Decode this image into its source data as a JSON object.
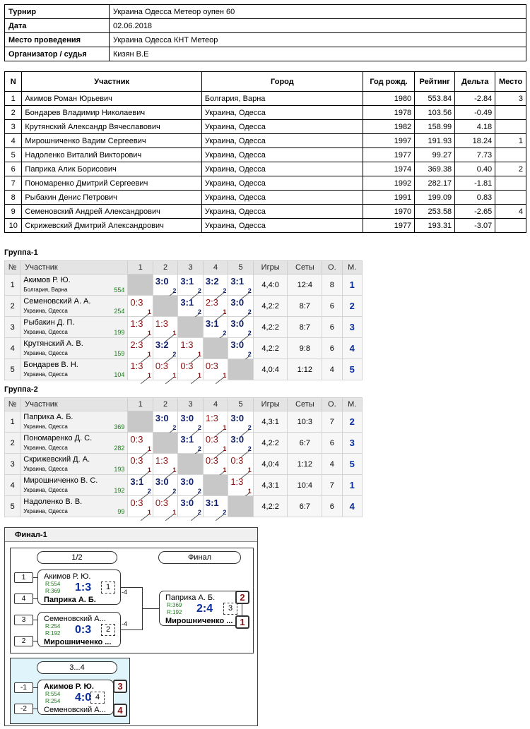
{
  "info": [
    {
      "label": "Турнир",
      "value": "Украина Одесса Метеор оупен 60"
    },
    {
      "label": "Дата",
      "value": "02.06.2018"
    },
    {
      "label": "Место проведения",
      "value": "Украина Одесса КНТ Метеор"
    },
    {
      "label": "Организатор / судья",
      "value": "Кизян В.Е"
    }
  ],
  "participants": {
    "headers": [
      "N",
      "Участник",
      "Город",
      "Год рожд.",
      "Рейтинг",
      "Дельта",
      "Место"
    ],
    "rows": [
      [
        "1",
        "Акимов Роман Юрьевич",
        "Болгария, Варна",
        "1980",
        "553.84",
        "-2.84",
        "3"
      ],
      [
        "2",
        "Бондарев Владимир Николаевич",
        "Украина, Одесса",
        "1978",
        "103.56",
        "-0.49",
        ""
      ],
      [
        "3",
        "Крутянский Александр Вячеславович",
        "Украина, Одесса",
        "1982",
        "158.99",
        "4.18",
        ""
      ],
      [
        "4",
        "Мирошниченко Вадим Сергеевич",
        "Украина, Одесса",
        "1997",
        "191.93",
        "18.24",
        "1"
      ],
      [
        "5",
        "Надоленко Виталий Викторович",
        "Украина, Одесса",
        "1977",
        "99.27",
        "7.73",
        ""
      ],
      [
        "6",
        "Паприка Алик Борисович",
        "Украина, Одесса",
        "1974",
        "369.38",
        "0.40",
        "2"
      ],
      [
        "7",
        "Пономаренко Дмитрий Сергеевич",
        "Украина, Одесса",
        "1992",
        "282.17",
        "-1.81",
        ""
      ],
      [
        "8",
        "Рыбакин Денис Петрович",
        "Украина, Одесса",
        "1991",
        "199.09",
        "0.83",
        ""
      ],
      [
        "9",
        "Семеновский Андрей Александрович",
        "Украина, Одесса",
        "1970",
        "253.58",
        "-2.65",
        "4"
      ],
      [
        "10",
        "Скрижевский Дмитрий Александрович",
        "Украина, Одесса",
        "1977",
        "193.31",
        "-3.07",
        ""
      ]
    ]
  },
  "group_headers": [
    "№",
    "Участник",
    "1",
    "2",
    "3",
    "4",
    "5",
    "Игры",
    "Сеты",
    "О.",
    "М."
  ],
  "groups": [
    {
      "title": "Группа-1",
      "rows": [
        {
          "n": "1",
          "name": "Акимов Р. Ю.",
          "city": "Болгария, Варна",
          "rating": "554",
          "cells": [
            null,
            [
              "3:0",
              "2",
              "win"
            ],
            [
              "3:1",
              "2",
              "win"
            ],
            [
              "3:2",
              "2",
              "win"
            ],
            [
              "3:1",
              "2",
              "win"
            ]
          ],
          "games": "4,4:0",
          "sets": "12:4",
          "points": "8",
          "place": "1"
        },
        {
          "n": "2",
          "name": "Семеновский А. А.",
          "city": "Украина, Одесса",
          "rating": "254",
          "cells": [
            [
              "0:3",
              "1",
              "lose"
            ],
            null,
            [
              "3:1",
              "2",
              "win"
            ],
            [
              "2:3",
              "1",
              "lose"
            ],
            [
              "3:0",
              "2",
              "win"
            ]
          ],
          "games": "4,2:2",
          "sets": "8:7",
          "points": "6",
          "place": "2"
        },
        {
          "n": "3",
          "name": "Рыбакин Д. П.",
          "city": "Украина, Одесса",
          "rating": "199",
          "cells": [
            [
              "1:3",
              "1",
              "lose"
            ],
            [
              "1:3",
              "1",
              "lose"
            ],
            null,
            [
              "3:1",
              "2",
              "win"
            ],
            [
              "3:0",
              "2",
              "win"
            ]
          ],
          "games": "4,2:2",
          "sets": "8:7",
          "points": "6",
          "place": "3"
        },
        {
          "n": "4",
          "name": "Крутянский А. В.",
          "city": "Украина, Одесса",
          "rating": "159",
          "cells": [
            [
              "2:3",
              "1",
              "lose"
            ],
            [
              "3:2",
              "2",
              "win"
            ],
            [
              "1:3",
              "1",
              "lose"
            ],
            null,
            [
              "3:0",
              "2",
              "win"
            ]
          ],
          "games": "4,2:2",
          "sets": "9:8",
          "points": "6",
          "place": "4"
        },
        {
          "n": "5",
          "name": "Бондарев В. Н.",
          "city": "Украина, Одесса",
          "rating": "104",
          "cells": [
            [
              "1:3",
              "1",
              "lose"
            ],
            [
              "0:3",
              "1",
              "lose"
            ],
            [
              "0:3",
              "1",
              "lose"
            ],
            [
              "0:3",
              "1",
              "lose"
            ],
            null
          ],
          "games": "4,0:4",
          "sets": "1:12",
          "points": "4",
          "place": "5"
        }
      ]
    },
    {
      "title": "Группа-2",
      "rows": [
        {
          "n": "1",
          "name": "Паприка А. Б.",
          "city": "Украина, Одесса",
          "rating": "369",
          "cells": [
            null,
            [
              "3:0",
              "2",
              "win"
            ],
            [
              "3:0",
              "2",
              "win"
            ],
            [
              "1:3",
              "1",
              "lose"
            ],
            [
              "3:0",
              "2",
              "win"
            ]
          ],
          "games": "4,3:1",
          "sets": "10:3",
          "points": "7",
          "place": "2"
        },
        {
          "n": "2",
          "name": "Пономаренко Д. С.",
          "city": "Украина, Одесса",
          "rating": "282",
          "cells": [
            [
              "0:3",
              "1",
              "lose"
            ],
            null,
            [
              "3:1",
              "2",
              "win"
            ],
            [
              "0:3",
              "1",
              "lose"
            ],
            [
              "3:0",
              "2",
              "win"
            ]
          ],
          "games": "4,2:2",
          "sets": "6:7",
          "points": "6",
          "place": "3"
        },
        {
          "n": "3",
          "name": "Скрижевский Д. А.",
          "city": "Украина, Одесса",
          "rating": "193",
          "cells": [
            [
              "0:3",
              "1",
              "lose"
            ],
            [
              "1:3",
              "1",
              "lose"
            ],
            null,
            [
              "0:3",
              "1",
              "lose"
            ],
            [
              "0:3",
              "1",
              "lose"
            ]
          ],
          "games": "4,0:4",
          "sets": "1:12",
          "points": "4",
          "place": "5"
        },
        {
          "n": "4",
          "name": "Мирошниченко В. С.",
          "city": "Украина, Одесса",
          "rating": "192",
          "cells": [
            [
              "3:1",
              "2",
              "win"
            ],
            [
              "3:0",
              "2",
              "win"
            ],
            [
              "3:0",
              "2",
              "win"
            ],
            null,
            [
              "1:3",
              "1",
              "lose"
            ]
          ],
          "games": "4,3:1",
          "sets": "10:4",
          "points": "7",
          "place": "1"
        },
        {
          "n": "5",
          "name": "Надоленко В. В.",
          "city": "Украина, Одесса",
          "rating": "99",
          "cells": [
            [
              "0:3",
              "1",
              "lose"
            ],
            [
              "0:3",
              "1",
              "lose"
            ],
            [
              "3:0",
              "2",
              "win"
            ],
            [
              "3:1",
              "2",
              "win"
            ],
            null
          ],
          "games": "4,2:2",
          "sets": "6:7",
          "points": "6",
          "place": "4"
        }
      ]
    }
  ],
  "final": {
    "title": "Финал-1",
    "round_semis": "1/2",
    "round_final": "Финал",
    "round_third": "3...4",
    "semi1": {
      "seed_top": "1",
      "seed_bottom": "4",
      "p1": "Акимов Р. Ю.",
      "p2": "Паприка А. Б.",
      "r1": "R:554",
      "r2": "R:369",
      "score": "1:3",
      "match_no": "1",
      "loser_label": "-4"
    },
    "semi2": {
      "seed_top": "3",
      "seed_bottom": "2",
      "p1": "Семеновский А...",
      "p2": "Мирошниченко ...",
      "r1": "R:254",
      "r2": "R:192",
      "score": "0:3",
      "match_no": "2",
      "loser_label": "-4"
    },
    "final_match": {
      "p1": "Паприка А. Б.",
      "p2": "Мирошниченко ...",
      "r1": "R:369",
      "r2": "R:192",
      "score": "2:4",
      "match_no": "3",
      "place1": "2",
      "place2": "1"
    },
    "third_match": {
      "seed_top": "-1",
      "seed_bottom": "-2",
      "p1": "Акимов Р. Ю.",
      "p2": "Семеновский А...",
      "r1": "R:554",
      "r2": "R:254",
      "score": "4:0",
      "match_no": "4",
      "place1": "3",
      "place2": "4"
    }
  }
}
